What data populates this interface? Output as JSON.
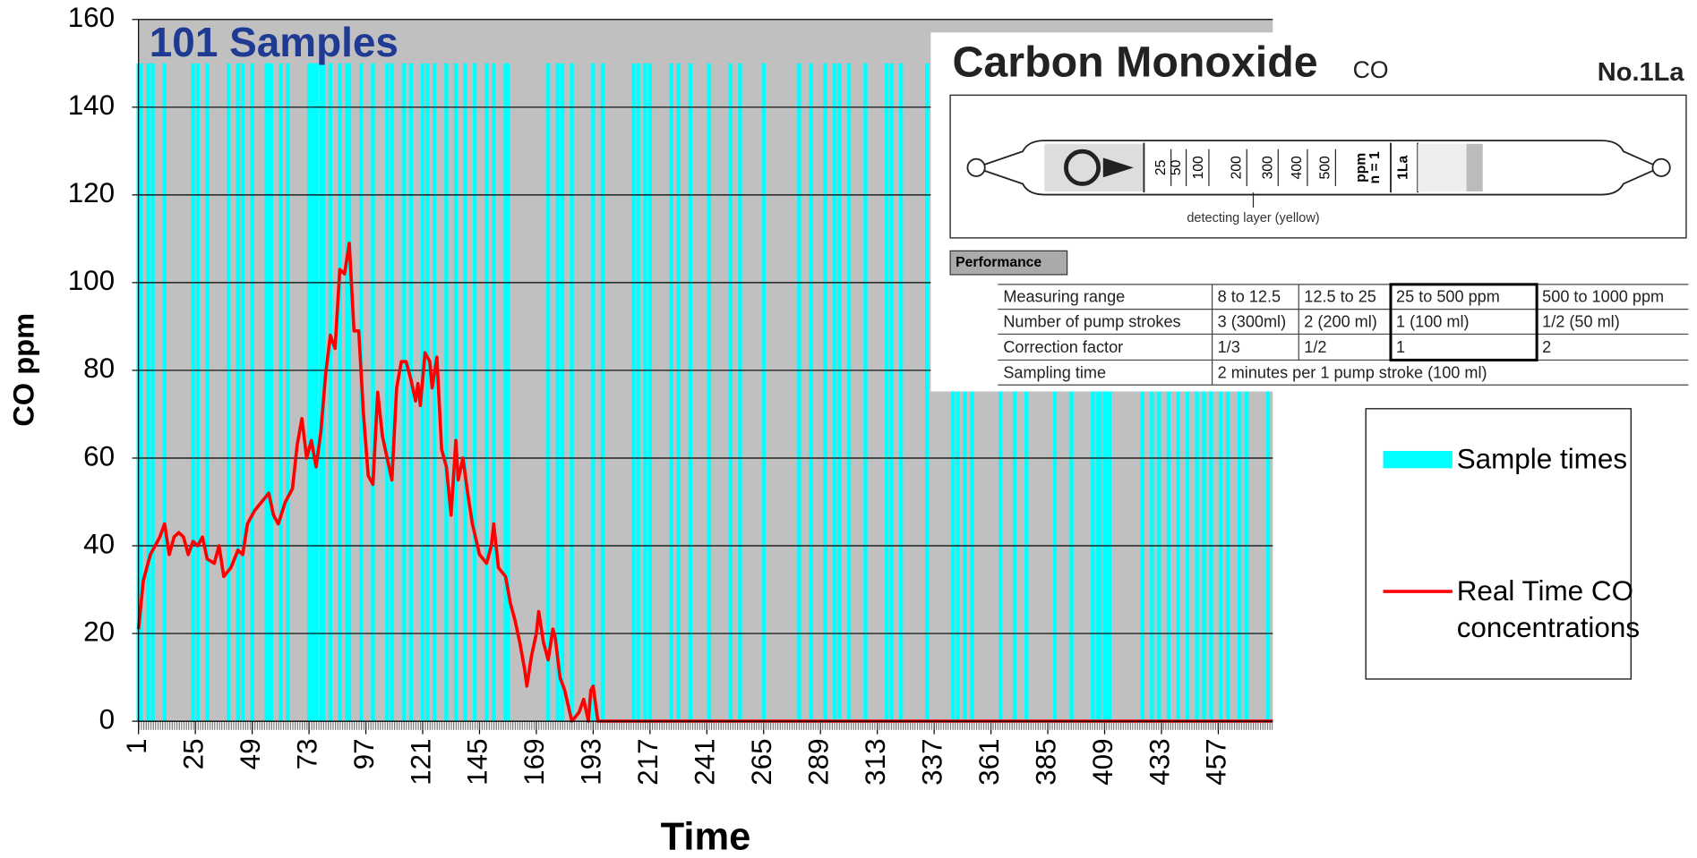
{
  "chart_data": {
    "type": "line",
    "title": "101 Samples",
    "xlabel": "Time",
    "ylabel": "CO ppm",
    "xlim": [
      1,
      480
    ],
    "ylim": [
      0,
      160
    ],
    "yticks": [
      0,
      20,
      40,
      60,
      80,
      100,
      120,
      140,
      160
    ],
    "xticks": [
      1,
      25,
      49,
      73,
      97,
      121,
      145,
      169,
      193,
      217,
      241,
      265,
      289,
      313,
      337,
      361,
      385,
      409,
      433,
      457
    ],
    "grid": true,
    "legend": "right",
    "series": [
      {
        "name": "Sample times",
        "type": "bar",
        "color": "#00ffff",
        "x": [
          1,
          2,
          5,
          7,
          12,
          24,
          26,
          30,
          39,
          43,
          45,
          49,
          55,
          56,
          57,
          61,
          64,
          73,
          74,
          75,
          76,
          78,
          79,
          82,
          86,
          89,
          90,
          95,
          100,
          106,
          108,
          113,
          116,
          121,
          123,
          126,
          131,
          135,
          139,
          143,
          148,
          151,
          156,
          157,
          174,
          178,
          180,
          184,
          193,
          197,
          210,
          212,
          215,
          217,
          226,
          229,
          234,
          242,
          251,
          255,
          265,
          280,
          285,
          291,
          295,
          297,
          301,
          308,
          317,
          319,
          323,
          334,
          345,
          347,
          350,
          353,
          365,
          371,
          376,
          388,
          395,
          404,
          406,
          407,
          409,
          410,
          411,
          425,
          429,
          432,
          436,
          440,
          444,
          448,
          451,
          454,
          458,
          461,
          466,
          469,
          478
        ],
        "values": [
          150,
          150,
          150,
          150,
          150,
          150,
          150,
          150,
          150,
          150,
          150,
          150,
          150,
          150,
          150,
          150,
          150,
          150,
          150,
          150,
          150,
          150,
          150,
          150,
          150,
          150,
          150,
          150,
          150,
          150,
          150,
          150,
          150,
          150,
          150,
          150,
          150,
          150,
          150,
          150,
          150,
          150,
          150,
          150,
          150,
          150,
          150,
          150,
          150,
          150,
          150,
          150,
          150,
          150,
          150,
          150,
          150,
          150,
          150,
          150,
          150,
          150,
          150,
          150,
          150,
          150,
          150,
          150,
          150,
          150,
          150,
          150,
          150,
          150,
          150,
          150,
          150,
          150,
          150,
          150,
          150,
          150,
          150,
          150,
          150,
          150,
          150,
          150,
          150,
          150,
          150,
          150,
          150,
          150,
          150,
          150,
          150,
          150,
          150,
          150,
          150
        ]
      },
      {
        "name": "Real Time CO concentrations",
        "type": "line",
        "color": "#ff0000",
        "x": [
          1,
          3,
          6,
          10,
          12,
          14,
          16,
          18,
          20,
          22,
          24,
          26,
          28,
          30,
          33,
          35,
          37,
          40,
          43,
          45,
          47,
          50,
          53,
          56,
          58,
          60,
          63,
          66,
          68,
          70,
          72,
          74,
          76,
          78,
          80,
          82,
          84,
          86,
          88,
          90,
          92,
          94,
          96,
          98,
          100,
          102,
          104,
          106,
          108,
          110,
          112,
          114,
          116,
          118,
          119,
          120,
          122,
          124,
          125,
          127,
          129,
          131,
          133,
          135,
          136,
          138,
          140,
          142,
          145,
          148,
          150,
          151,
          153,
          156,
          158,
          160,
          162,
          164,
          165,
          167,
          169,
          170,
          172,
          174,
          176,
          177,
          179,
          181,
          184,
          187,
          189,
          191,
          192,
          193,
          195,
          480
        ],
        "values": [
          21,
          32,
          38,
          42,
          45,
          38,
          42,
          43,
          42,
          38,
          41,
          40,
          42,
          37,
          36,
          40,
          33,
          35,
          39,
          38,
          45,
          48,
          50,
          52,
          47,
          45,
          50,
          53,
          63,
          69,
          60,
          64,
          58,
          66,
          79,
          88,
          85,
          103,
          102,
          109,
          89,
          89,
          70,
          56,
          54,
          75,
          65,
          60,
          55,
          76,
          82,
          82,
          78,
          73,
          77,
          72,
          84,
          82,
          76,
          83,
          62,
          58,
          47,
          64,
          55,
          60,
          52,
          45,
          38,
          36,
          40,
          45,
          35,
          33,
          27,
          23,
          18,
          12,
          8,
          15,
          20,
          25,
          18,
          14,
          21,
          19,
          10,
          7,
          0,
          2,
          5,
          0,
          7,
          8,
          0,
          0
        ]
      }
    ]
  },
  "inset": {
    "title": "Carbon Monoxide",
    "formula": "CO",
    "number": "No.1La",
    "scale": [
      "25",
      "50",
      "100",
      "200",
      "300",
      "400",
      "500",
      "ppm",
      "n = 1",
      "1La"
    ],
    "layer": "detecting layer (yellow)",
    "section": "Performance",
    "rows": [
      [
        "Measuring range",
        "8 to 12.5",
        "12.5 to 25",
        "25 to 500 ppm",
        "500 to 1000 ppm"
      ],
      [
        "Number of pump strokes",
        "3 (300ml)",
        "2 (200 ml)",
        "1  (100 ml)",
        "1/2  (50 ml)"
      ],
      [
        "Correction factor",
        "1/3",
        "1/2",
        "1",
        "2"
      ],
      [
        "Sampling time",
        "2 minutes per 1 pump stroke (100 ml)"
      ]
    ]
  }
}
